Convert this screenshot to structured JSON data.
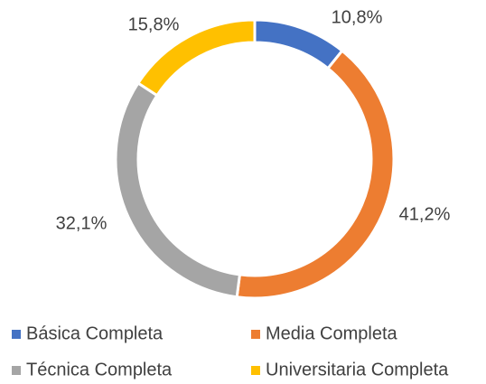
{
  "chart_data": {
    "type": "donut",
    "categories": [
      "Básica Completa",
      "Media Completa",
      "Técnica Completa",
      "Universitaria Completa"
    ],
    "values": [
      10.8,
      41.2,
      32.1,
      15.8
    ],
    "value_labels": [
      "10,8%",
      "41,2%",
      "32,1%",
      "15,8%"
    ],
    "colors": [
      "#4472c4",
      "#ed7d31",
      "#a5a5a5",
      "#ffc000"
    ],
    "legend": "bottom"
  }
}
